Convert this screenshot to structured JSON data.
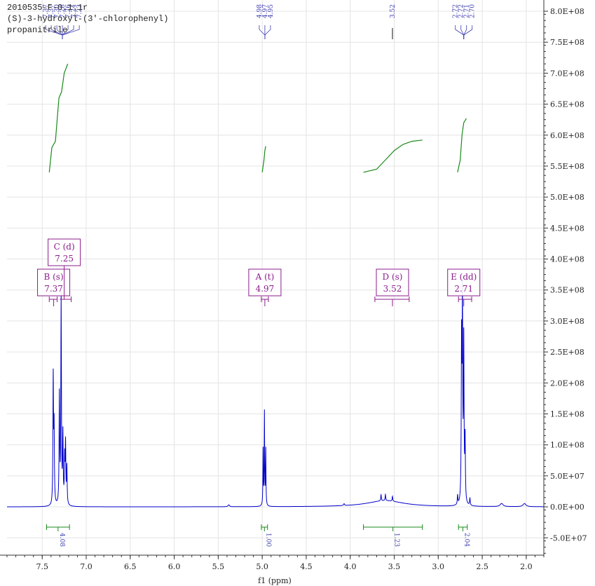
{
  "chart_data": {
    "type": "line",
    "title": [
      "2010535-F-0.1.1r",
      "(S)-3-hydroxyl-(3'-chlorophenyl)",
      "propanitrile"
    ],
    "xlabel": "f1 (ppm)",
    "xlim": [
      7.9,
      1.8
    ],
    "xticks": [
      "7.5",
      "7.0",
      "6.5",
      "6.0",
      "5.5",
      "5.0",
      "4.5",
      "4.0",
      "3.5",
      "3.0",
      "2.5",
      "2.0"
    ],
    "ylim": [
      -78000000,
      800000000
    ],
    "yticks": [
      {
        "v": 800000000,
        "label": "8.0E+08"
      },
      {
        "v": 750000000,
        "label": "7.5E+08"
      },
      {
        "v": 700000000,
        "label": "7.0E+08"
      },
      {
        "v": 650000000,
        "label": "6.5E+08"
      },
      {
        "v": 600000000,
        "label": "6.0E+08"
      },
      {
        "v": 550000000,
        "label": "5.5E+08"
      },
      {
        "v": 500000000,
        "label": "5.0E+08"
      },
      {
        "v": 450000000,
        "label": "4.5E+08"
      },
      {
        "v": 400000000,
        "label": "4.0E+08"
      },
      {
        "v": 350000000,
        "label": "3.5E+08"
      },
      {
        "v": 300000000,
        "label": "3.0E+08"
      },
      {
        "v": 250000000,
        "label": "2.5E+08"
      },
      {
        "v": 200000000,
        "label": "2.0E+08"
      },
      {
        "v": 150000000,
        "label": "1.5E+08"
      },
      {
        "v": 100000000,
        "label": "1.0E+08"
      },
      {
        "v": 50000000,
        "label": "5.0E+07"
      },
      {
        "v": 0,
        "label": "0.0E+00"
      },
      {
        "v": -50000000,
        "label": "-5.0E+07"
      }
    ],
    "grid": true,
    "spectrum_peaks": [
      {
        "ppm": 7.375,
        "height": 205000000,
        "width": 0.004
      },
      {
        "ppm": 7.365,
        "height": 120000000,
        "width": 0.004
      },
      {
        "ppm": 7.305,
        "height": 175000000,
        "width": 0.004
      },
      {
        "ppm": 7.285,
        "height": 335000000,
        "width": 0.004
      },
      {
        "ppm": 7.265,
        "height": 110000000,
        "width": 0.004
      },
      {
        "ppm": 7.245,
        "height": 70000000,
        "width": 0.004
      },
      {
        "ppm": 7.235,
        "height": 95000000,
        "width": 0.004
      },
      {
        "ppm": 7.22,
        "height": 60000000,
        "width": 0.004
      },
      {
        "ppm": 4.99,
        "height": 90000000,
        "width": 0.003
      },
      {
        "ppm": 4.975,
        "height": 150000000,
        "width": 0.003
      },
      {
        "ppm": 4.96,
        "height": 90000000,
        "width": 0.003
      },
      {
        "ppm": 3.6,
        "height": 10000000,
        "width": 0.25
      },
      {
        "ppm": 3.65,
        "height": 10000000,
        "width": 0.004
      },
      {
        "ppm": 3.6,
        "height": 10000000,
        "width": 0.004
      },
      {
        "ppm": 3.52,
        "height": 8000000,
        "width": 0.004
      },
      {
        "ppm": 2.735,
        "height": 250000000,
        "width": 0.004
      },
      {
        "ppm": 2.725,
        "height": 315000000,
        "width": 0.004
      },
      {
        "ppm": 2.71,
        "height": 255000000,
        "width": 0.004
      },
      {
        "ppm": 2.695,
        "height": 100000000,
        "width": 0.004
      },
      {
        "ppm": 2.78,
        "height": 15000000,
        "width": 0.004
      },
      {
        "ppm": 2.64,
        "height": 12000000,
        "width": 0.004
      },
      {
        "ppm": 2.28,
        "height": 5000000,
        "width": 0.02
      },
      {
        "ppm": 2.02,
        "height": 5000000,
        "width": 0.02
      },
      {
        "ppm": 5.38,
        "height": 3000000,
        "width": 0.01
      },
      {
        "ppm": 4.07,
        "height": 3000000,
        "width": 0.006
      }
    ],
    "peak_labels": {
      "groups": [
        {
          "anchor_ppm": 7.27,
          "labels": [
            "7.37",
            "7.37",
            "7.30",
            "7.28",
            "7.26",
            "7.24",
            "7.23"
          ]
        },
        {
          "anchor_ppm": 4.97,
          "labels": [
            "4.98",
            "4.97",
            "4.95"
          ]
        },
        {
          "anchor_ppm": 3.52,
          "labels": [
            "3.52"
          ]
        },
        {
          "anchor_ppm": 2.71,
          "labels": [
            "2.72",
            "2.72",
            "2.71",
            "2.70"
          ]
        }
      ]
    },
    "multiplets": [
      {
        "name": "B (s)",
        "shift": "7.37",
        "ppm": 7.37,
        "range": [
          7.42,
          7.33
        ]
      },
      {
        "name": "C (d)",
        "shift": "7.25",
        "ppm": 7.25,
        "range": [
          7.3,
          7.17
        ]
      },
      {
        "name": "A (t)",
        "shift": "4.97",
        "ppm": 4.97,
        "range": [
          5.01,
          4.93
        ]
      },
      {
        "name": "D (s)",
        "shift": "3.52",
        "ppm": 3.52,
        "range": [
          3.72,
          3.33
        ]
      },
      {
        "name": "E (dd)",
        "shift": "2.71",
        "ppm": 2.71,
        "range": [
          2.77,
          2.62
        ]
      }
    ],
    "integrals": [
      {
        "value": "4.08",
        "range": [
          7.45,
          7.19
        ]
      },
      {
        "value": "1.00",
        "range": [
          5.01,
          4.94
        ]
      },
      {
        "value": "1.23",
        "range": [
          3.85,
          3.18
        ]
      },
      {
        "value": "2.04",
        "range": [
          2.77,
          2.67
        ]
      }
    ],
    "integral_curves": [
      {
        "range": [
          7.42,
          7.19
        ],
        "points": [
          [
            7.42,
            540000000
          ],
          [
            7.39,
            580000000
          ],
          [
            7.35,
            590000000
          ],
          [
            7.31,
            660000000
          ],
          [
            7.28,
            670000000
          ],
          [
            7.25,
            700000000
          ],
          [
            7.21,
            715000000
          ]
        ]
      },
      {
        "range": [
          5.0,
          4.95
        ],
        "points": [
          [
            5.0,
            540000000
          ],
          [
            4.98,
            560000000
          ],
          [
            4.97,
            575000000
          ],
          [
            4.96,
            582000000
          ]
        ]
      },
      {
        "range": [
          3.85,
          3.18
        ],
        "points": [
          [
            3.85,
            540000000
          ],
          [
            3.7,
            545000000
          ],
          [
            3.6,
            560000000
          ],
          [
            3.5,
            575000000
          ],
          [
            3.4,
            585000000
          ],
          [
            3.3,
            590000000
          ],
          [
            3.18,
            592000000
          ]
        ]
      },
      {
        "range": [
          2.78,
          2.67
        ],
        "points": [
          [
            2.78,
            540000000
          ],
          [
            2.75,
            560000000
          ],
          [
            2.73,
            600000000
          ],
          [
            2.71,
            620000000
          ],
          [
            2.68,
            627000000
          ]
        ]
      }
    ],
    "colors": {
      "spectrum": "#0000cc",
      "integral": "#1a8a1a",
      "multiplet": "#8b1c8b",
      "peaklabel": "#3a3ab0",
      "grid": "#e4e4e4"
    }
  }
}
